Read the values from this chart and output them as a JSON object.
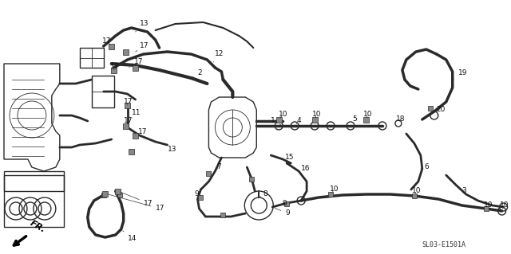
{
  "bg_color": "#f5f5f0",
  "diagram_code": "SL03-E1501A",
  "fig_width": 6.4,
  "fig_height": 3.19,
  "dpi": 100,
  "line_color": "#2a2a2a",
  "label_fontsize": 6.5,
  "code_fontsize": 6.0,
  "lw_hose": 2.0,
  "lw_part": 1.0,
  "lw_thin": 0.6
}
